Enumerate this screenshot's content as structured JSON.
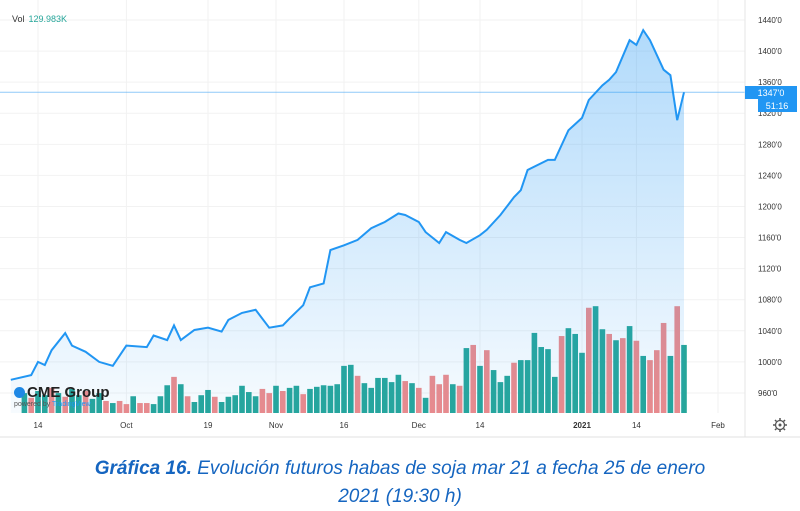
{
  "header": {
    "vol_label": "Vol",
    "vol_value": "129.983K"
  },
  "logo": {
    "name": "CME Group",
    "powered_by": "powered by",
    "provider": "TradingView"
  },
  "price_label": "1347'0",
  "countdown_label": "51:16",
  "caption": {
    "bold": "Gráfica 16.",
    "text": "Evolución futuros habas de soja mar 21 a fecha 25 de enero",
    "line2": "2021 (19:30 h)"
  },
  "colors": {
    "line": "#2196f3",
    "up": "#26a69a",
    "down": "#ef8a8a",
    "caption": "#1565c0"
  },
  "chart_data": {
    "type": "area",
    "ylim": [
      940,
      1460
    ],
    "y_ticks": [
      "1440'0",
      "1400'0",
      "1360'0",
      "1320'0",
      "1280'0",
      "1240'0",
      "1200'0",
      "1160'0",
      "1120'0",
      "1080'0",
      "1040'0",
      "1000'0",
      "960'0"
    ],
    "y_tick_values": [
      1440,
      1400,
      1360,
      1320,
      1280,
      1240,
      1200,
      1160,
      1120,
      1080,
      1040,
      1000,
      960
    ],
    "x_ticks": [
      {
        "label": "14",
        "date": "2020-09-14"
      },
      {
        "label": "Oct",
        "date": "2020-10-01"
      },
      {
        "label": "19",
        "date": "2020-10-19"
      },
      {
        "label": "Nov",
        "date": "2020-11-02"
      },
      {
        "label": "16",
        "date": "2020-11-16"
      },
      {
        "label": "Dec",
        "date": "2020-12-01"
      },
      {
        "label": "14",
        "date": "2020-12-14"
      },
      {
        "label": "2021",
        "date": "2021-01-04",
        "bold": true
      },
      {
        "label": "14",
        "date": "2021-01-14"
      },
      {
        "label": "Feb",
        "date": "2021-02-01"
      }
    ],
    "grid": true,
    "last_price": 1347,
    "price": [
      [
        "2020-09-08",
        977
      ],
      [
        "2020-09-11",
        983
      ],
      [
        "2020-09-14",
        1000
      ],
      [
        "2020-09-15",
        996
      ],
      [
        "2020-09-16",
        1015
      ],
      [
        "2020-09-18",
        1037
      ],
      [
        "2020-09-21",
        1021
      ],
      [
        "2020-09-23",
        1013
      ],
      [
        "2020-09-25",
        1000
      ],
      [
        "2020-09-29",
        995
      ],
      [
        "2020-10-01",
        1021
      ],
      [
        "2020-10-06",
        1019
      ],
      [
        "2020-10-07",
        1034
      ],
      [
        "2020-10-09",
        1028
      ],
      [
        "2020-10-12",
        1047
      ],
      [
        "2020-10-13",
        1028
      ],
      [
        "2020-10-15",
        1041
      ],
      [
        "2020-10-19",
        1044
      ],
      [
        "2020-10-21",
        1039
      ],
      [
        "2020-10-22",
        1054
      ],
      [
        "2020-10-26",
        1063
      ],
      [
        "2020-10-28",
        1067
      ],
      [
        "2020-10-30",
        1044
      ],
      [
        "2020-11-03",
        1047
      ],
      [
        "2020-11-04",
        1056
      ],
      [
        "2020-11-06",
        1073
      ],
      [
        "2020-11-09",
        1096
      ],
      [
        "2020-11-11",
        1101
      ],
      [
        "2020-11-12",
        1144
      ],
      [
        "2020-11-16",
        1150
      ],
      [
        "2020-11-18",
        1157
      ],
      [
        "2020-11-20",
        1172
      ],
      [
        "2020-11-24",
        1180
      ],
      [
        "2020-11-26",
        1191
      ],
      [
        "2020-11-27",
        1189
      ],
      [
        "2020-12-01",
        1180
      ],
      [
        "2020-12-02",
        1167
      ],
      [
        "2020-12-04",
        1153
      ],
      [
        "2020-12-07",
        1167
      ],
      [
        "2020-12-09",
        1157
      ],
      [
        "2020-12-10",
        1153
      ],
      [
        "2020-12-14",
        1163
      ],
      [
        "2020-12-15",
        1170
      ],
      [
        "2020-12-17",
        1189
      ],
      [
        "2020-12-21",
        1212
      ],
      [
        "2020-12-22",
        1221
      ],
      [
        "2020-12-23",
        1247
      ],
      [
        "2020-12-28",
        1260
      ],
      [
        "2020-12-29",
        1260
      ],
      [
        "2020-12-31",
        1298
      ],
      [
        "2021-01-04",
        1314
      ],
      [
        "2021-01-05",
        1337
      ],
      [
        "2021-01-07",
        1356
      ],
      [
        "2021-01-08",
        1363
      ],
      [
        "2021-01-11",
        1373
      ],
      [
        "2021-01-13",
        1414
      ],
      [
        "2021-01-14",
        1408
      ],
      [
        "2021-01-15",
        1427
      ],
      [
        "2021-01-18",
        1414
      ],
      [
        "2021-01-20",
        1376
      ],
      [
        "2021-01-21",
        1369
      ],
      [
        "2021-01-22",
        1311
      ],
      [
        "2021-01-25",
        1347
      ]
    ],
    "volume_k": [
      38,
      29,
      42,
      34,
      48,
      38,
      31,
      46,
      34,
      42,
      27,
      38,
      23,
      19,
      23,
      17,
      32,
      19,
      19,
      17,
      32,
      53,
      69,
      55,
      32,
      21,
      34,
      44,
      31,
      21,
      31,
      34,
      52,
      40,
      32,
      46,
      38,
      52,
      42,
      48,
      52,
      36,
      46,
      50,
      53,
      52,
      55,
      90,
      92,
      71,
      57,
      48,
      67,
      67,
      59,
      73,
      61,
      57,
      48,
      29,
      71,
      55,
      73,
      55,
      52,
      124,
      130,
      90,
      120,
      82,
      59,
      71,
      96,
      101,
      101,
      153,
      126,
      122,
      69,
      147,
      162,
      151,
      115,
      201,
      204,
      160,
      151,
      139,
      143,
      166,
      138,
      109,
      101,
      120,
      172,
      109,
      204,
      130
    ],
    "volume_direction": "uduududuuduududdudduuudu duuudu uuuuudduduGdGGGGGGGRGGGGGGRGRGRRRGRGRGRGGGRGGGGGGRGGGRGGRGRGRGRRRGRG"
  }
}
